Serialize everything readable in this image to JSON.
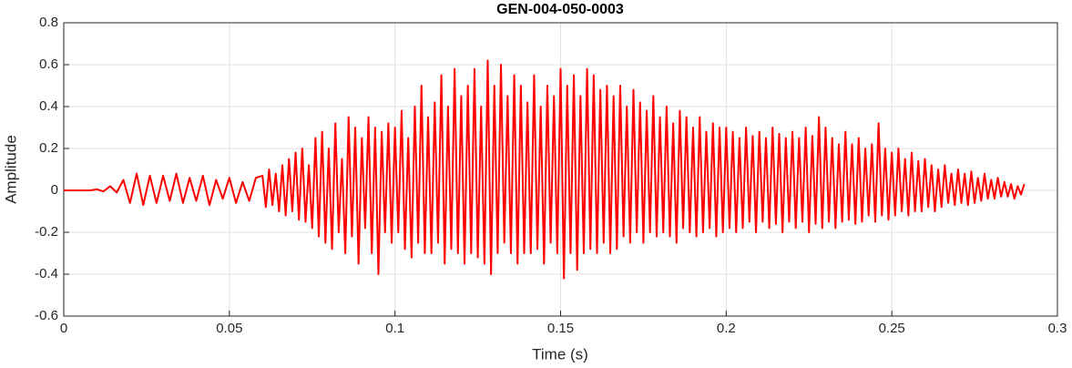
{
  "chart_data": {
    "type": "line",
    "title": "GEN-004-050-0003",
    "x_label": "Time (s)",
    "y_label": "Amplitude",
    "xlim": [
      0,
      0.3
    ],
    "xticks": [
      0,
      0.05,
      0.1,
      0.15,
      0.2,
      0.25,
      0.3
    ],
    "ylim": [
      -0.6,
      0.8
    ],
    "yticks": [
      -0.6,
      -0.4,
      -0.2,
      0,
      0.2,
      0.4,
      0.6,
      0.8
    ],
    "grid": true,
    "series": [
      {
        "color": "#ff0000",
        "x": [
          0,
          0.002,
          0.004,
          0.006,
          0.008,
          0.01,
          0.012,
          0.014,
          0.016,
          0.018,
          0.02,
          0.022,
          0.024,
          0.026,
          0.028,
          0.03,
          0.032,
          0.034,
          0.036,
          0.038,
          0.04,
          0.042,
          0.044,
          0.046,
          0.048,
          0.05,
          0.052,
          0.054,
          0.056,
          0.058,
          0.06,
          0.061,
          0.062,
          0.063,
          0.064,
          0.065,
          0.066,
          0.067,
          0.068,
          0.069,
          0.07,
          0.071,
          0.072,
          0.073,
          0.074,
          0.075,
          0.076,
          0.077,
          0.078,
          0.079,
          0.08,
          0.081,
          0.082,
          0.083,
          0.084,
          0.085,
          0.086,
          0.087,
          0.088,
          0.089,
          0.09,
          0.091,
          0.092,
          0.093,
          0.094,
          0.095,
          0.096,
          0.097,
          0.098,
          0.099,
          0.1,
          0.101,
          0.102,
          0.103,
          0.104,
          0.105,
          0.106,
          0.107,
          0.108,
          0.109,
          0.11,
          0.111,
          0.112,
          0.113,
          0.114,
          0.115,
          0.116,
          0.117,
          0.118,
          0.119,
          0.12,
          0.121,
          0.122,
          0.123,
          0.124,
          0.125,
          0.126,
          0.127,
          0.128,
          0.129,
          0.13,
          0.131,
          0.132,
          0.133,
          0.134,
          0.135,
          0.136,
          0.137,
          0.138,
          0.139,
          0.14,
          0.141,
          0.142,
          0.143,
          0.144,
          0.145,
          0.146,
          0.147,
          0.148,
          0.149,
          0.15,
          0.151,
          0.152,
          0.153,
          0.154,
          0.155,
          0.156,
          0.157,
          0.158,
          0.159,
          0.16,
          0.161,
          0.162,
          0.163,
          0.164,
          0.165,
          0.166,
          0.167,
          0.168,
          0.169,
          0.17,
          0.171,
          0.172,
          0.173,
          0.174,
          0.175,
          0.176,
          0.177,
          0.178,
          0.179,
          0.18,
          0.181,
          0.182,
          0.183,
          0.184,
          0.185,
          0.186,
          0.187,
          0.188,
          0.189,
          0.19,
          0.191,
          0.192,
          0.193,
          0.194,
          0.195,
          0.196,
          0.197,
          0.198,
          0.199,
          0.2,
          0.201,
          0.202,
          0.203,
          0.204,
          0.205,
          0.206,
          0.207,
          0.208,
          0.209,
          0.21,
          0.211,
          0.212,
          0.213,
          0.214,
          0.215,
          0.216,
          0.217,
          0.218,
          0.219,
          0.22,
          0.221,
          0.222,
          0.223,
          0.224,
          0.225,
          0.226,
          0.227,
          0.228,
          0.229,
          0.23,
          0.231,
          0.232,
          0.233,
          0.234,
          0.235,
          0.236,
          0.237,
          0.238,
          0.239,
          0.24,
          0.241,
          0.242,
          0.243,
          0.244,
          0.245,
          0.246,
          0.247,
          0.248,
          0.249,
          0.25,
          0.251,
          0.252,
          0.253,
          0.254,
          0.255,
          0.256,
          0.257,
          0.258,
          0.259,
          0.26,
          0.261,
          0.262,
          0.263,
          0.264,
          0.265,
          0.266,
          0.267,
          0.268,
          0.269,
          0.27,
          0.271,
          0.272,
          0.273,
          0.274,
          0.275,
          0.276,
          0.277,
          0.278,
          0.279,
          0.28,
          0.281,
          0.282,
          0.283,
          0.284,
          0.285,
          0.286,
          0.287,
          0.288,
          0.289,
          0.29
        ],
        "values": [
          0,
          0,
          0,
          0,
          0,
          0.005,
          -0.005,
          0.02,
          -0.01,
          0.05,
          -0.06,
          0.08,
          -0.07,
          0.07,
          -0.06,
          0.07,
          -0.05,
          0.08,
          -0.06,
          0.06,
          -0.05,
          0.07,
          -0.07,
          0.05,
          -0.04,
          0.06,
          -0.06,
          0.04,
          -0.05,
          0.06,
          0.07,
          -0.08,
          0.1,
          -0.07,
          0.08,
          -0.1,
          0.12,
          -0.12,
          0.15,
          -0.1,
          0.18,
          -0.14,
          0.2,
          -0.15,
          0.12,
          -0.18,
          0.25,
          -0.22,
          0.28,
          -0.25,
          0.2,
          -0.28,
          0.32,
          -0.2,
          0.15,
          -0.3,
          0.35,
          -0.22,
          0.3,
          -0.35,
          0.25,
          -0.18,
          0.35,
          -0.3,
          0.3,
          -0.4,
          0.28,
          -0.2,
          0.32,
          -0.25,
          0.3,
          -0.2,
          0.38,
          -0.28,
          0.25,
          -0.32,
          0.4,
          -0.25,
          0.5,
          -0.3,
          0.35,
          -0.3,
          0.42,
          -0.25,
          0.55,
          -0.35,
          0.4,
          -0.28,
          0.58,
          -0.3,
          0.45,
          -0.35,
          0.5,
          -0.3,
          0.58,
          -0.32,
          0.4,
          -0.35,
          0.62,
          -0.4,
          0.5,
          -0.3,
          0.6,
          -0.25,
          0.45,
          -0.3,
          0.55,
          -0.35,
          0.5,
          -0.3,
          0.42,
          -0.3,
          0.55,
          -0.28,
          0.4,
          -0.35,
          0.5,
          -0.25,
          0.45,
          -0.3,
          0.58,
          -0.42,
          0.5,
          -0.3,
          0.55,
          -0.38,
          0.45,
          -0.3,
          0.58,
          -0.28,
          0.55,
          -0.3,
          0.48,
          -0.25,
          0.5,
          -0.3,
          0.45,
          -0.28,
          0.5,
          -0.22,
          0.4,
          -0.25,
          0.48,
          -0.2,
          0.42,
          -0.25,
          0.38,
          -0.2,
          0.45,
          -0.22,
          0.35,
          -0.2,
          0.4,
          -0.22,
          0.32,
          -0.25,
          0.38,
          -0.18,
          0.35,
          -0.2,
          0.3,
          -0.22,
          0.35,
          -0.2,
          0.28,
          -0.18,
          0.32,
          -0.22,
          0.3,
          -0.2,
          0.3,
          -0.18,
          0.28,
          -0.2,
          0.25,
          -0.18,
          0.3,
          -0.15,
          0.26,
          -0.2,
          0.28,
          -0.15,
          0.25,
          -0.18,
          0.3,
          -0.16,
          0.27,
          -0.2,
          0.25,
          -0.15,
          0.28,
          -0.18,
          0.25,
          -0.15,
          0.3,
          -0.2,
          0.26,
          -0.16,
          0.35,
          -0.18,
          0.3,
          -0.15,
          0.25,
          -0.18,
          0.22,
          -0.15,
          0.28,
          -0.14,
          0.22,
          -0.16,
          0.25,
          -0.15,
          0.2,
          -0.12,
          0.22,
          -0.15,
          0.32,
          -0.12,
          0.2,
          -0.14,
          0.18,
          -0.12,
          0.2,
          -0.1,
          0.15,
          -0.12,
          0.18,
          -0.1,
          0.14,
          -0.1,
          0.15,
          -0.08,
          0.12,
          -0.1,
          0.1,
          -0.08,
          0.12,
          -0.06,
          0.08,
          -0.07,
          0.1,
          -0.06,
          0.08,
          -0.07,
          0.09,
          -0.06,
          0.06,
          -0.05,
          0.08,
          -0.04,
          0.05,
          -0.04,
          0.06,
          -0.03,
          0.04,
          -0.03,
          0.03,
          -0.04,
          0.02,
          -0.02,
          0.03
        ]
      }
    ]
  }
}
